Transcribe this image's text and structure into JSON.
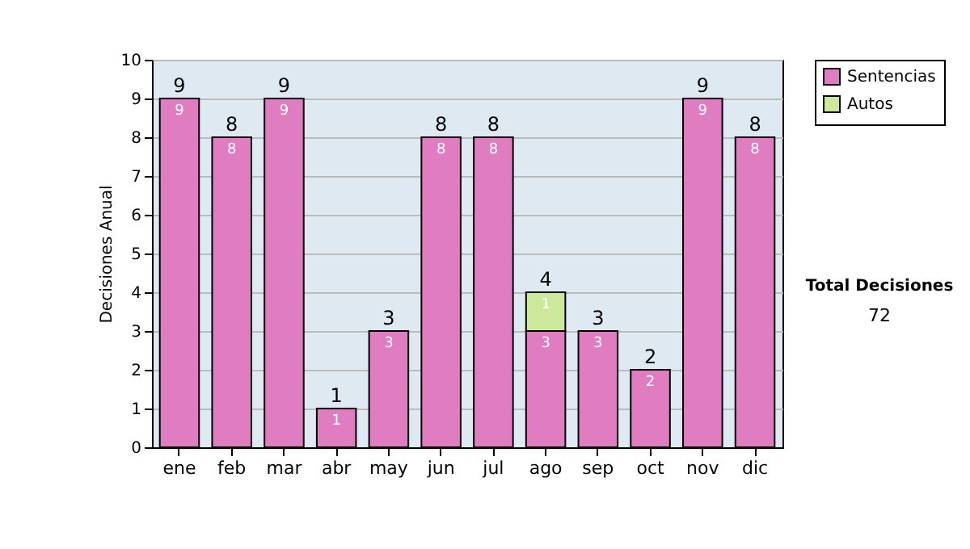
{
  "chart_data": {
    "type": "bar",
    "stacked": true,
    "ylabel": "Decisiones Anual",
    "categories": [
      "ene",
      "feb",
      "mar",
      "abr",
      "may",
      "jun",
      "jul",
      "ago",
      "sep",
      "oct",
      "nov",
      "dic"
    ],
    "series": [
      {
        "name": "Sentencias",
        "color": "#e07cc0",
        "values": [
          9,
          8,
          9,
          1,
          3,
          8,
          8,
          3,
          3,
          2,
          9,
          8
        ]
      },
      {
        "name": "Autos",
        "color": "#cce89a",
        "values": [
          null,
          null,
          null,
          null,
          null,
          null,
          null,
          1,
          null,
          null,
          null,
          null
        ]
      }
    ],
    "data_labels": true,
    "totals": [
      "9",
      "8",
      "9",
      "1",
      "3",
      "8",
      "8",
      "4",
      "3",
      "2",
      "9",
      "8"
    ],
    "ylim": [
      0,
      10
    ],
    "yticks": [
      0,
      1,
      2,
      3,
      4,
      5,
      6,
      7,
      8,
      9,
      10
    ],
    "grid": "y",
    "legend": "right",
    "annotations": [
      "Total Decisiones",
      "72"
    ]
  }
}
